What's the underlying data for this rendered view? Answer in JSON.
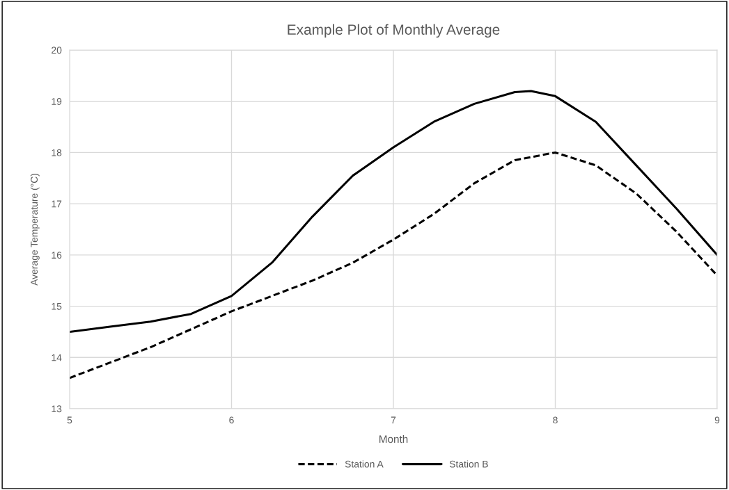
{
  "chart_data": {
    "type": "line",
    "title": "Example Plot of Monthly Average",
    "xlabel": "Month",
    "ylabel": "Average Temperature (°C)",
    "series": [
      {
        "name": "Station A",
        "color": "#000000",
        "line_style": "dashed",
        "x": [
          5,
          5.25,
          5.5,
          5.75,
          6,
          6.25,
          6.5,
          6.75,
          7,
          7.25,
          7.5,
          7.75,
          8,
          8.25,
          8.5,
          8.75,
          9
        ],
        "values": [
          13.6,
          13.9,
          14.2,
          14.55,
          14.9,
          15.2,
          15.5,
          15.85,
          16.3,
          16.8,
          17.4,
          17.85,
          18.0,
          17.75,
          17.2,
          16.45,
          15.6
        ]
      },
      {
        "name": "Station B",
        "color": "#000000",
        "line_style": "solid",
        "x": [
          5,
          5.25,
          5.5,
          5.75,
          6,
          6.25,
          6.5,
          6.75,
          7,
          7.25,
          7.5,
          7.75,
          7.85,
          8,
          8.25,
          8.5,
          8.75,
          9
        ],
        "values": [
          14.5,
          14.6,
          14.7,
          14.85,
          15.2,
          15.85,
          16.75,
          17.55,
          18.1,
          18.6,
          18.95,
          19.18,
          19.2,
          19.1,
          18.6,
          17.75,
          16.9,
          16.0
        ]
      }
    ],
    "xlim": [
      5,
      9
    ],
    "xticks": [
      5,
      6,
      7,
      8,
      9
    ],
    "ylim": [
      13,
      20
    ],
    "yticks": [
      13,
      14,
      15,
      16,
      17,
      18,
      19,
      20
    ],
    "grid": true,
    "legend": "bottom",
    "marker": "none"
  }
}
